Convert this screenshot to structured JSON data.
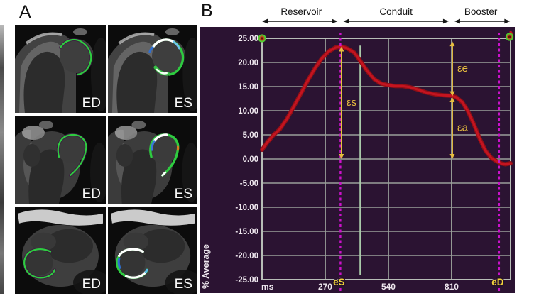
{
  "figure": {
    "panel_a": {
      "label": "A",
      "images": [
        {
          "label": "ED",
          "view": "a2c",
          "contour": "ed"
        },
        {
          "label": "ES",
          "view": "a2c",
          "contour": "es"
        },
        {
          "label": "ED",
          "view": "a3c",
          "contour": "ed"
        },
        {
          "label": "ES",
          "view": "a3c",
          "contour": "es"
        },
        {
          "label": "ED",
          "view": "a4c",
          "contour": "ed"
        },
        {
          "label": "ES",
          "view": "a4c",
          "contour": "es"
        }
      ]
    },
    "panel_b": {
      "label": "B"
    }
  },
  "chart_data": {
    "type": "line",
    "title": "",
    "xlabel": "ms",
    "ylabel": "% Average",
    "xlim": [
      0,
      1062
    ],
    "ylim": [
      -25,
      25
    ],
    "grid": true,
    "legend": false,
    "x_ticks": [
      {
        "value": 270,
        "label": "270"
      },
      {
        "value": 540,
        "label": "540"
      },
      {
        "value": 810,
        "label": "810"
      }
    ],
    "y_ticks": [
      {
        "value": 25,
        "label": "25.00"
      },
      {
        "value": 20,
        "label": "20.00"
      },
      {
        "value": 15,
        "label": "15.00"
      },
      {
        "value": 10,
        "label": "10.00"
      },
      {
        "value": 5,
        "label": "5.00"
      },
      {
        "value": 0,
        "label": "0.00"
      },
      {
        "value": -5,
        "label": "-5.00"
      },
      {
        "value": -10,
        "label": "-10.00"
      },
      {
        "value": -15,
        "label": "-15.00"
      },
      {
        "value": -20,
        "label": "-20.00"
      },
      {
        "value": -25,
        "label": "-25.00"
      }
    ],
    "series": [
      {
        "name": "% Average",
        "color": "#c41420",
        "x": [
          0,
          25,
          50,
          75,
          105,
          135,
          165,
          195,
          225,
          255,
          285,
          315,
          340,
          365,
          395,
          420,
          450,
          480,
          510,
          540,
          570,
          600,
          630,
          665,
          700,
          740,
          775,
          810,
          830,
          855,
          880,
          905,
          930,
          955,
          980,
          1000,
          1020,
          1040,
          1062
        ],
        "y": [
          1.9,
          3.6,
          5.0,
          6.1,
          8.2,
          10.8,
          13.5,
          16.2,
          18.7,
          20.8,
          22.3,
          23.1,
          23.3,
          22.9,
          22.0,
          20.3,
          18.2,
          16.5,
          15.6,
          15.3,
          15.1,
          15.1,
          14.9,
          14.4,
          13.8,
          13.4,
          13.2,
          13.1,
          12.8,
          11.8,
          9.9,
          7.2,
          4.2,
          1.7,
          0.2,
          -0.4,
          -0.9,
          -1.1,
          -0.9
        ]
      }
    ],
    "event_lines": [
      {
        "label": "eS",
        "x": 335,
        "style": "dashed-magenta"
      },
      {
        "label": "eD",
        "x": 1013,
        "style": "dashed-magenta"
      },
      {
        "label": "",
        "x": 420,
        "style": "solid-green"
      }
    ],
    "strain_annotations": [
      {
        "label": "εs",
        "x": 335,
        "from": 0,
        "to": 23.3
      },
      {
        "label": "εe",
        "x": 810,
        "from": 13.0,
        "to": 24.4
      },
      {
        "label": "εa",
        "x": 810,
        "from": 0,
        "to": 12.8
      }
    ],
    "phases": [
      {
        "label": "Reservoir",
        "from": 0,
        "to": 335
      },
      {
        "label": "Conduit",
        "from": 335,
        "to": 810
      },
      {
        "label": "Booster",
        "from": 810,
        "to": 1060
      }
    ],
    "colors": {
      "background": "#2b1332",
      "grid": "#9aa09a",
      "grid_border": "#b7bdb7",
      "axis_text": "#efe8ef",
      "curve": "#c41420",
      "curve_edge": "#8f0f16",
      "event_line": "#cb12cb",
      "event_label": "#f2d43c",
      "valve_line": "#a9c9a9",
      "annotation": "#e7bd3e",
      "marker_ring": "#4ecb2f",
      "marker_fill": "#bf4f1f",
      "phase_text": "#151515"
    }
  }
}
